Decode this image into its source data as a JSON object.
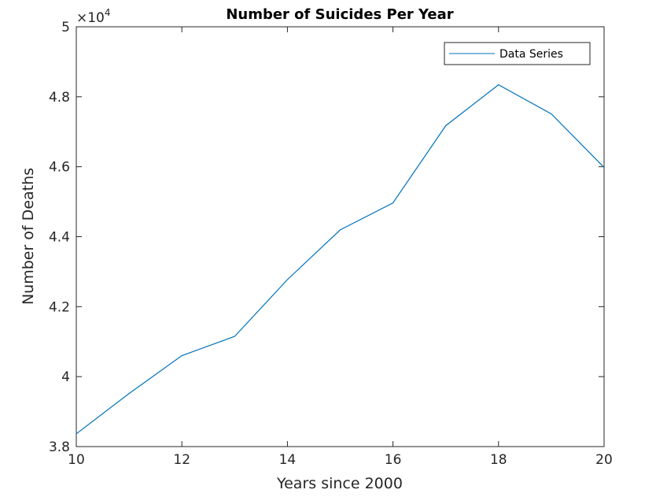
{
  "chart_data": {
    "type": "line",
    "title": "Number of Suicides Per Year",
    "xlabel": "Years since 2000",
    "ylabel": "Number of Deaths",
    "y_exponent_base": "×10",
    "y_exponent_power": "4",
    "xlim": [
      10,
      20
    ],
    "ylim": [
      38000,
      50000
    ],
    "x_ticks": [
      10,
      12,
      14,
      16,
      18,
      20
    ],
    "y_ticks": [
      38000,
      40000,
      42000,
      44000,
      46000,
      48000,
      50000
    ],
    "y_tick_labels": [
      "3.8",
      "4",
      "4.2",
      "4.4",
      "4.6",
      "4.8",
      "5"
    ],
    "grid": false,
    "legend_position": "top-right",
    "series": [
      {
        "name": "Data Series",
        "color": "#0072BD",
        "x": [
          10,
          11,
          12,
          13,
          14,
          15,
          16,
          17,
          18,
          19,
          20
        ],
        "y": [
          38364,
          39518,
          40600,
          41149,
          42773,
          44193,
          44965,
          47173,
          48344,
          47511,
          45979
        ]
      }
    ]
  }
}
